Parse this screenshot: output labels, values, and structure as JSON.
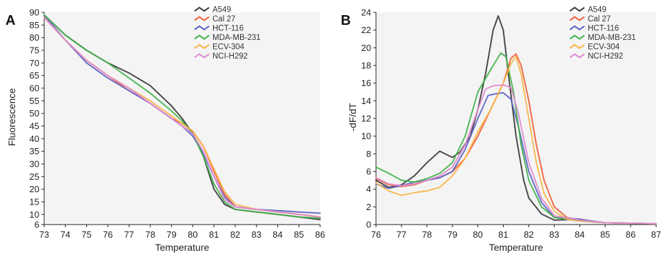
{
  "chart_data": [
    {
      "type": "line",
      "panel_label": "A",
      "xlabel": "Temperature",
      "ylabel": "Fluorescence",
      "xlim": [
        73,
        86
      ],
      "ylim": [
        6,
        90
      ],
      "xticks": [
        "73",
        "74",
        "75",
        "76",
        "77",
        "78",
        "79",
        "80",
        "81",
        "82",
        "83",
        "84",
        "85",
        "86"
      ],
      "yticks": [
        "6",
        "10",
        "15",
        "20",
        "25",
        "30",
        "35",
        "40",
        "45",
        "50",
        "55",
        "60",
        "65",
        "70",
        "75",
        "80",
        "85",
        "90"
      ],
      "legend_position": "top-right",
      "series": [
        {
          "name": "A549",
          "color": "#3a3a3a",
          "points": [
            [
              73,
              89
            ],
            [
              74,
              81
            ],
            [
              75,
              75
            ],
            [
              76,
              70
            ],
            [
              77,
              66
            ],
            [
              78,
              61
            ],
            [
              79,
              53
            ],
            [
              79.5,
              48
            ],
            [
              80,
              42
            ],
            [
              80.5,
              33
            ],
            [
              81,
              20
            ],
            [
              81.5,
              14
            ],
            [
              82,
              12
            ],
            [
              83,
              11
            ],
            [
              84,
              10
            ],
            [
              85,
              9
            ],
            [
              86,
              8
            ]
          ]
        },
        {
          "name": "Cal 27",
          "color": "#f0603a",
          "points": [
            [
              73,
              88
            ],
            [
              74,
              79
            ],
            [
              75,
              71
            ],
            [
              76,
              65
            ],
            [
              77,
              59
            ],
            [
              78,
              54
            ],
            [
              79,
              48
            ],
            [
              79.5,
              46
            ],
            [
              80,
              43
            ],
            [
              80.5,
              37
            ],
            [
              81,
              27
            ],
            [
              81.5,
              18
            ],
            [
              82,
              13
            ],
            [
              83,
              12
            ],
            [
              84,
              11
            ],
            [
              85,
              10
            ],
            [
              86,
              9
            ]
          ]
        },
        {
          "name": "HCT-116",
          "color": "#5a63c6",
          "points": [
            [
              73,
              89
            ],
            [
              74,
              79
            ],
            [
              75,
              70
            ],
            [
              76,
              64
            ],
            [
              77,
              59
            ],
            [
              78,
              54
            ],
            [
              79,
              48
            ],
            [
              79.5,
              45
            ],
            [
              80,
              41
            ],
            [
              80.5,
              34
            ],
            [
              81,
              25
            ],
            [
              81.5,
              17
            ],
            [
              82,
              13
            ],
            [
              83,
              12
            ],
            [
              84,
              11.5
            ],
            [
              85,
              11
            ],
            [
              86,
              10.5
            ]
          ]
        },
        {
          "name": "MDA-MB-231",
          "color": "#43b24a",
          "points": [
            [
              73,
              89
            ],
            [
              74,
              81
            ],
            [
              75,
              75
            ],
            [
              76,
              70
            ],
            [
              77,
              64
            ],
            [
              78,
              58
            ],
            [
              79,
              51
            ],
            [
              79.5,
              47
            ],
            [
              80,
              42
            ],
            [
              80.5,
              33
            ],
            [
              81,
              22
            ],
            [
              81.5,
              15
            ],
            [
              82,
              12
            ],
            [
              83,
              11
            ],
            [
              84,
              10
            ],
            [
              85,
              9
            ],
            [
              86,
              8.5
            ]
          ]
        },
        {
          "name": "ECV-304",
          "color": "#f7b54a",
          "points": [
            [
              73,
              88
            ],
            [
              74,
              79
            ],
            [
              75,
              71
            ],
            [
              76,
              65
            ],
            [
              77,
              60
            ],
            [
              78,
              55
            ],
            [
              79,
              49
            ],
            [
              79.5,
              46
            ],
            [
              80,
              43
            ],
            [
              80.5,
              37
            ],
            [
              81,
              28
            ],
            [
              81.5,
              19
            ],
            [
              82,
              14
            ],
            [
              83,
              12
            ],
            [
              84,
              11
            ],
            [
              85,
              10
            ],
            [
              86,
              9
            ]
          ]
        },
        {
          "name": "NCI-H292",
          "color": "#e08ad0",
          "points": [
            [
              73,
              88
            ],
            [
              74,
              79
            ],
            [
              75,
              71
            ],
            [
              76,
              65
            ],
            [
              77,
              60
            ],
            [
              78,
              54
            ],
            [
              79,
              48
            ],
            [
              79.5,
              45
            ],
            [
              80,
              42
            ],
            [
              80.5,
              35
            ],
            [
              81,
              25
            ],
            [
              81.5,
              16
            ],
            [
              82,
              13
            ],
            [
              83,
              12
            ],
            [
              84,
              11
            ],
            [
              85,
              10
            ],
            [
              86,
              9
            ]
          ]
        }
      ]
    },
    {
      "type": "line",
      "panel_label": "B",
      "xlabel": "Temperature",
      "ylabel": "-dF/dT",
      "xlim": [
        76,
        87
      ],
      "ylim": [
        0,
        24
      ],
      "xticks": [
        "76",
        "77",
        "78",
        "79",
        "80",
        "81",
        "82",
        "83",
        "84",
        "85",
        "86",
        "87"
      ],
      "yticks": [
        "0",
        "2",
        "4",
        "6",
        "8",
        "10",
        "12",
        "14",
        "16",
        "18",
        "20",
        "22",
        "24"
      ],
      "legend_position": "top-right",
      "series": [
        {
          "name": "A549",
          "color": "#3a3a3a",
          "points": [
            [
              76,
              5
            ],
            [
              76.5,
              4.2
            ],
            [
              77,
              4.5
            ],
            [
              77.5,
              5.5
            ],
            [
              78,
              7
            ],
            [
              78.5,
              8.3
            ],
            [
              79,
              7.6
            ],
            [
              79.3,
              8.2
            ],
            [
              79.7,
              10
            ],
            [
              80,
              13
            ],
            [
              80.3,
              17
            ],
            [
              80.6,
              22
            ],
            [
              80.8,
              23.6
            ],
            [
              81,
              22
            ],
            [
              81.2,
              17
            ],
            [
              81.5,
              10
            ],
            [
              81.8,
              5
            ],
            [
              82,
              3
            ],
            [
              82.5,
              1.2
            ],
            [
              83,
              0.5
            ],
            [
              84,
              0.6
            ],
            [
              84.5,
              0.3
            ],
            [
              85,
              0.2
            ],
            [
              87,
              0.1
            ]
          ]
        },
        {
          "name": "Cal 27",
          "color": "#f0603a",
          "points": [
            [
              76,
              5.2
            ],
            [
              76.5,
              4.5
            ],
            [
              77,
              4.3
            ],
            [
              77.5,
              4.5
            ],
            [
              78,
              5
            ],
            [
              78.5,
              5.3
            ],
            [
              79,
              6
            ],
            [
              79.5,
              7.5
            ],
            [
              80,
              10
            ],
            [
              80.5,
              13
            ],
            [
              81,
              16
            ],
            [
              81.3,
              18.8
            ],
            [
              81.5,
              19.3
            ],
            [
              81.7,
              18
            ],
            [
              82,
              14
            ],
            [
              82.3,
              9
            ],
            [
              82.6,
              5
            ],
            [
              83,
              2
            ],
            [
              83.5,
              0.8
            ],
            [
              84,
              0.5
            ],
            [
              85,
              0.2
            ],
            [
              87,
              0.1
            ]
          ]
        },
        {
          "name": "HCT-116",
          "color": "#5a63c6",
          "points": [
            [
              76,
              4.6
            ],
            [
              76.5,
              4.1
            ],
            [
              77,
              4.4
            ],
            [
              77.5,
              4.8
            ],
            [
              78,
              5
            ],
            [
              78.5,
              5.3
            ],
            [
              79,
              6
            ],
            [
              79.5,
              8.5
            ],
            [
              80,
              12
            ],
            [
              80.4,
              14.6
            ],
            [
              80.7,
              14.8
            ],
            [
              81,
              14.9
            ],
            [
              81.3,
              14.2
            ],
            [
              81.6,
              11
            ],
            [
              82,
              6
            ],
            [
              82.5,
              2.5
            ],
            [
              83,
              0.8
            ],
            [
              84,
              0.6
            ],
            [
              84.5,
              0.4
            ],
            [
              85,
              0.2
            ],
            [
              87,
              0.1
            ]
          ]
        },
        {
          "name": "MDA-MB-231",
          "color": "#43b24a",
          "points": [
            [
              76,
              6.5
            ],
            [
              76.5,
              5.8
            ],
            [
              77,
              5
            ],
            [
              77.5,
              4.8
            ],
            [
              78,
              5.2
            ],
            [
              78.5,
              5.8
            ],
            [
              79,
              7
            ],
            [
              79.5,
              10
            ],
            [
              80,
              15
            ],
            [
              80.5,
              17.5
            ],
            [
              80.9,
              19.4
            ],
            [
              81.1,
              19
            ],
            [
              81.4,
              15
            ],
            [
              81.7,
              9
            ],
            [
              82,
              5
            ],
            [
              82.5,
              2
            ],
            [
              83,
              0.8
            ],
            [
              84,
              0.4
            ],
            [
              85,
              0.2
            ],
            [
              87,
              0.1
            ]
          ]
        },
        {
          "name": "ECV-304",
          "color": "#f7b54a",
          "points": [
            [
              76,
              4.7
            ],
            [
              76.5,
              3.8
            ],
            [
              77,
              3.3
            ],
            [
              77.5,
              3.6
            ],
            [
              78,
              3.8
            ],
            [
              78.5,
              4.2
            ],
            [
              79,
              5.5
            ],
            [
              79.5,
              7.5
            ],
            [
              80,
              10.5
            ],
            [
              80.5,
              13
            ],
            [
              81,
              16
            ],
            [
              81.3,
              18.2
            ],
            [
              81.5,
              19
            ],
            [
              81.7,
              17
            ],
            [
              82,
              12
            ],
            [
              82.3,
              7
            ],
            [
              82.6,
              3.5
            ],
            [
              83,
              1.5
            ],
            [
              83.5,
              0.6
            ],
            [
              84,
              0.4
            ],
            [
              85,
              0.2
            ],
            [
              87,
              0.1
            ]
          ]
        },
        {
          "name": "NCI-H292",
          "color": "#e08ad0",
          "points": [
            [
              76,
              5.3
            ],
            [
              76.5,
              4.6
            ],
            [
              77,
              4.4
            ],
            [
              77.5,
              4.6
            ],
            [
              78,
              5
            ],
            [
              78.5,
              5.5
            ],
            [
              79,
              6.5
            ],
            [
              79.5,
              9
            ],
            [
              80,
              13
            ],
            [
              80.3,
              15.3
            ],
            [
              80.6,
              15.7
            ],
            [
              81,
              15.8
            ],
            [
              81.3,
              15.5
            ],
            [
              81.6,
              12.5
            ],
            [
              82,
              7
            ],
            [
              82.5,
              3
            ],
            [
              83,
              1
            ],
            [
              84,
              0.5
            ],
            [
              85,
              0.2
            ],
            [
              87,
              0.1
            ]
          ]
        }
      ]
    }
  ]
}
